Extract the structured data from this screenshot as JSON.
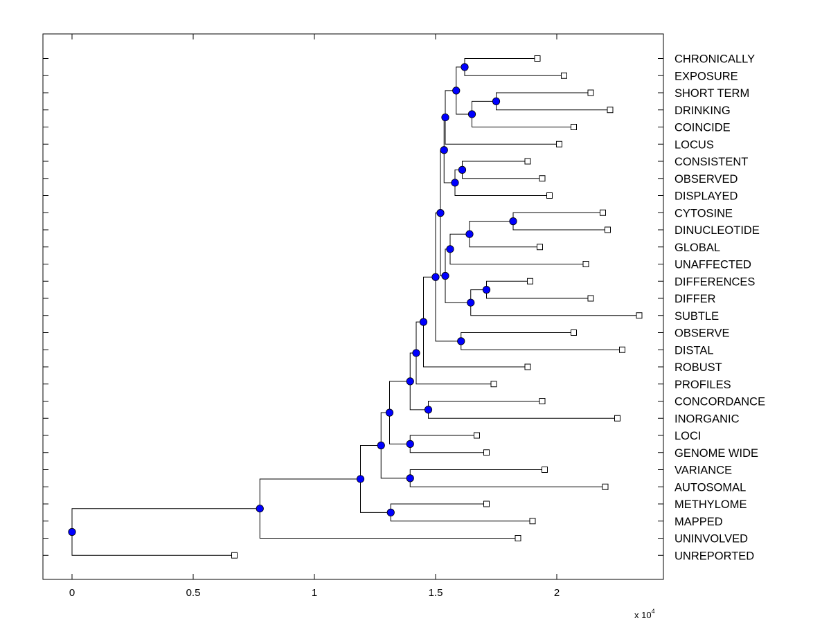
{
  "chart_data": {
    "type": "dendrogram",
    "orientation": "horizontal",
    "xlim": [
      -0.12,
      2.44
    ],
    "x_ticks": [
      0,
      0.5,
      1,
      1.5,
      2
    ],
    "x_tick_labels": [
      "0",
      "0.5",
      "1",
      "1.5",
      "2"
    ],
    "x_scale_label": "x 10",
    "x_scale_exponent": "4",
    "leaf_marker_color": "#ffffff",
    "node_marker_color": "#0000ff",
    "leaves": [
      {
        "label": "CHRONICALLY",
        "x": 1.92
      },
      {
        "label": "EXPOSURE",
        "x": 2.03
      },
      {
        "label": "SHORT TERM",
        "x": 2.14
      },
      {
        "label": "DRINKING",
        "x": 2.22
      },
      {
        "label": "COINCIDE",
        "x": 2.07
      },
      {
        "label": "LOCUS",
        "x": 2.01
      },
      {
        "label": "CONSISTENT",
        "x": 1.88
      },
      {
        "label": "OBSERVED",
        "x": 1.94
      },
      {
        "label": "DISPLAYED",
        "x": 1.97
      },
      {
        "label": "CYTOSINE",
        "x": 2.19
      },
      {
        "label": "DINUCLEOTIDE",
        "x": 2.21
      },
      {
        "label": "GLOBAL",
        "x": 1.93
      },
      {
        "label": "UNAFFECTED",
        "x": 2.12
      },
      {
        "label": "DIFFERENCES",
        "x": 1.89
      },
      {
        "label": "DIFFER",
        "x": 2.14
      },
      {
        "label": "SUBTLE",
        "x": 2.34
      },
      {
        "label": "OBSERVE",
        "x": 2.07
      },
      {
        "label": "DISTAL",
        "x": 2.27
      },
      {
        "label": "ROBUST",
        "x": 1.88
      },
      {
        "label": "PROFILES",
        "x": 1.74
      },
      {
        "label": "CONCORDANCE",
        "x": 1.94
      },
      {
        "label": "INORGANIC",
        "x": 2.25
      },
      {
        "label": "LOCI",
        "x": 1.67
      },
      {
        "label": "GENOME WIDE",
        "x": 1.71
      },
      {
        "label": "VARIANCE",
        "x": 1.95
      },
      {
        "label": "AUTOSOMAL",
        "x": 2.2
      },
      {
        "label": "METHYLOME",
        "x": 1.71
      },
      {
        "label": "MAPPED",
        "x": 1.9
      },
      {
        "label": "UNINVOLVED",
        "x": 1.84
      },
      {
        "label": "UNREPORTED",
        "x": 0.67
      }
    ],
    "merges": [
      {
        "id": "n1",
        "x": 1.62,
        "children": [
          "L0",
          "L1"
        ]
      },
      {
        "id": "n2",
        "x": 1.75,
        "children": [
          "L2",
          "L3"
        ]
      },
      {
        "id": "n3",
        "x": 1.65,
        "children": [
          "n2",
          "L4"
        ]
      },
      {
        "id": "n4",
        "x": 1.585,
        "children": [
          "n1",
          "n3"
        ]
      },
      {
        "id": "n5",
        "x": 1.54,
        "children": [
          "n4",
          "L5"
        ]
      },
      {
        "id": "n6",
        "x": 1.61,
        "children": [
          "L6",
          "L7"
        ]
      },
      {
        "id": "n7",
        "x": 1.58,
        "children": [
          "n6",
          "L8"
        ]
      },
      {
        "id": "n8",
        "x": 1.535,
        "children": [
          "n5",
          "n7"
        ]
      },
      {
        "id": "n9",
        "x": 1.82,
        "children": [
          "L9",
          "L10"
        ]
      },
      {
        "id": "n10",
        "x": 1.64,
        "children": [
          "n9",
          "L11"
        ]
      },
      {
        "id": "n11",
        "x": 1.56,
        "children": [
          "n10",
          "L12"
        ]
      },
      {
        "id": "n12",
        "x": 1.71,
        "children": [
          "L13",
          "L14"
        ]
      },
      {
        "id": "n13",
        "x": 1.645,
        "children": [
          "n12",
          "L15"
        ]
      },
      {
        "id": "n14",
        "x": 1.54,
        "children": [
          "n11",
          "n13"
        ]
      },
      {
        "id": "n15",
        "x": 1.52,
        "children": [
          "n8",
          "n14"
        ]
      },
      {
        "id": "n16",
        "x": 1.605,
        "children": [
          "L16",
          "L17"
        ]
      },
      {
        "id": "n17",
        "x": 1.5,
        "children": [
          "n15",
          "n16"
        ]
      },
      {
        "id": "n18",
        "x": 1.45,
        "children": [
          "n17",
          "L18"
        ]
      },
      {
        "id": "n19",
        "x": 1.42,
        "children": [
          "n18",
          "L19"
        ]
      },
      {
        "id": "n20",
        "x": 1.47,
        "children": [
          "L20",
          "L21"
        ]
      },
      {
        "id": "n21",
        "x": 1.395,
        "children": [
          "n19",
          "n20"
        ]
      },
      {
        "id": "n22",
        "x": 1.395,
        "children": [
          "L22",
          "L23"
        ]
      },
      {
        "id": "n23",
        "x": 1.31,
        "children": [
          "n21",
          "n22"
        ]
      },
      {
        "id": "n24",
        "x": 1.395,
        "children": [
          "L24",
          "L25"
        ]
      },
      {
        "id": "n25",
        "x": 1.275,
        "children": [
          "n23",
          "n24"
        ]
      },
      {
        "id": "n26",
        "x": 1.315,
        "children": [
          "L26",
          "L27"
        ]
      },
      {
        "id": "n27",
        "x": 1.19,
        "children": [
          "n25",
          "n26"
        ]
      },
      {
        "id": "n28",
        "x": 0.775,
        "children": [
          "n27",
          "L28"
        ]
      },
      {
        "id": "n29",
        "x": 0.0,
        "children": [
          "n28",
          "L29"
        ]
      }
    ]
  }
}
